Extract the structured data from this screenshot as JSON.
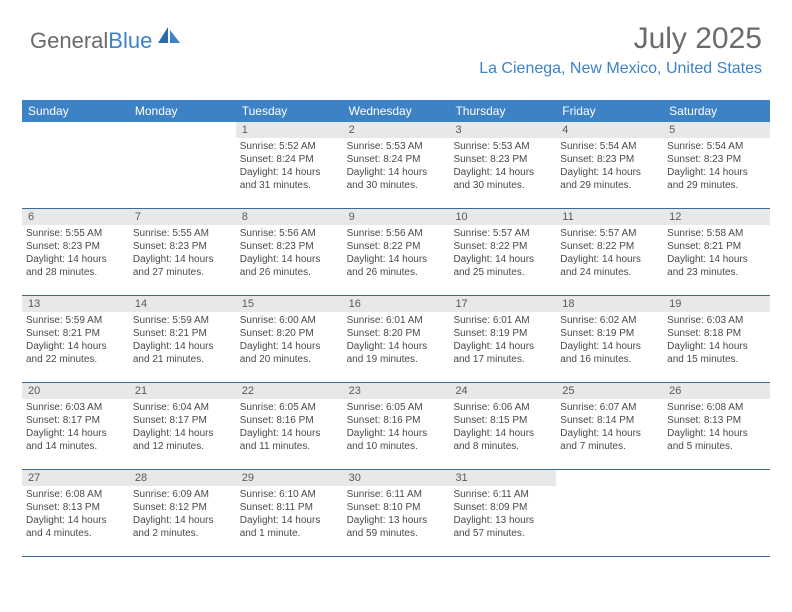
{
  "logo": {
    "text1": "General",
    "text2": "Blue"
  },
  "header": {
    "month_title": "July 2025",
    "location": "La Cienega, New Mexico, United States"
  },
  "colors": {
    "header_bg": "#3d82c4",
    "header_text": "#ffffff",
    "daynum_bg": "#e8e8e8",
    "border": "#3d6a96",
    "title_color": "#6b6b6b",
    "location_color": "#3d82c4",
    "body_text": "#4a4a4a"
  },
  "day_names": [
    "Sunday",
    "Monday",
    "Tuesday",
    "Wednesday",
    "Thursday",
    "Friday",
    "Saturday"
  ],
  "weeks": [
    [
      null,
      null,
      {
        "n": "1",
        "sr": "5:52 AM",
        "ss": "8:24 PM",
        "dl": "14 hours and 31 minutes."
      },
      {
        "n": "2",
        "sr": "5:53 AM",
        "ss": "8:24 PM",
        "dl": "14 hours and 30 minutes."
      },
      {
        "n": "3",
        "sr": "5:53 AM",
        "ss": "8:23 PM",
        "dl": "14 hours and 30 minutes."
      },
      {
        "n": "4",
        "sr": "5:54 AM",
        "ss": "8:23 PM",
        "dl": "14 hours and 29 minutes."
      },
      {
        "n": "5",
        "sr": "5:54 AM",
        "ss": "8:23 PM",
        "dl": "14 hours and 29 minutes."
      }
    ],
    [
      {
        "n": "6",
        "sr": "5:55 AM",
        "ss": "8:23 PM",
        "dl": "14 hours and 28 minutes."
      },
      {
        "n": "7",
        "sr": "5:55 AM",
        "ss": "8:23 PM",
        "dl": "14 hours and 27 minutes."
      },
      {
        "n": "8",
        "sr": "5:56 AM",
        "ss": "8:23 PM",
        "dl": "14 hours and 26 minutes."
      },
      {
        "n": "9",
        "sr": "5:56 AM",
        "ss": "8:22 PM",
        "dl": "14 hours and 26 minutes."
      },
      {
        "n": "10",
        "sr": "5:57 AM",
        "ss": "8:22 PM",
        "dl": "14 hours and 25 minutes."
      },
      {
        "n": "11",
        "sr": "5:57 AM",
        "ss": "8:22 PM",
        "dl": "14 hours and 24 minutes."
      },
      {
        "n": "12",
        "sr": "5:58 AM",
        "ss": "8:21 PM",
        "dl": "14 hours and 23 minutes."
      }
    ],
    [
      {
        "n": "13",
        "sr": "5:59 AM",
        "ss": "8:21 PM",
        "dl": "14 hours and 22 minutes."
      },
      {
        "n": "14",
        "sr": "5:59 AM",
        "ss": "8:21 PM",
        "dl": "14 hours and 21 minutes."
      },
      {
        "n": "15",
        "sr": "6:00 AM",
        "ss": "8:20 PM",
        "dl": "14 hours and 20 minutes."
      },
      {
        "n": "16",
        "sr": "6:01 AM",
        "ss": "8:20 PM",
        "dl": "14 hours and 19 minutes."
      },
      {
        "n": "17",
        "sr": "6:01 AM",
        "ss": "8:19 PM",
        "dl": "14 hours and 17 minutes."
      },
      {
        "n": "18",
        "sr": "6:02 AM",
        "ss": "8:19 PM",
        "dl": "14 hours and 16 minutes."
      },
      {
        "n": "19",
        "sr": "6:03 AM",
        "ss": "8:18 PM",
        "dl": "14 hours and 15 minutes."
      }
    ],
    [
      {
        "n": "20",
        "sr": "6:03 AM",
        "ss": "8:17 PM",
        "dl": "14 hours and 14 minutes."
      },
      {
        "n": "21",
        "sr": "6:04 AM",
        "ss": "8:17 PM",
        "dl": "14 hours and 12 minutes."
      },
      {
        "n": "22",
        "sr": "6:05 AM",
        "ss": "8:16 PM",
        "dl": "14 hours and 11 minutes."
      },
      {
        "n": "23",
        "sr": "6:05 AM",
        "ss": "8:16 PM",
        "dl": "14 hours and 10 minutes."
      },
      {
        "n": "24",
        "sr": "6:06 AM",
        "ss": "8:15 PM",
        "dl": "14 hours and 8 minutes."
      },
      {
        "n": "25",
        "sr": "6:07 AM",
        "ss": "8:14 PM",
        "dl": "14 hours and 7 minutes."
      },
      {
        "n": "26",
        "sr": "6:08 AM",
        "ss": "8:13 PM",
        "dl": "14 hours and 5 minutes."
      }
    ],
    [
      {
        "n": "27",
        "sr": "6:08 AM",
        "ss": "8:13 PM",
        "dl": "14 hours and 4 minutes."
      },
      {
        "n": "28",
        "sr": "6:09 AM",
        "ss": "8:12 PM",
        "dl": "14 hours and 2 minutes."
      },
      {
        "n": "29",
        "sr": "6:10 AM",
        "ss": "8:11 PM",
        "dl": "14 hours and 1 minute."
      },
      {
        "n": "30",
        "sr": "6:11 AM",
        "ss": "8:10 PM",
        "dl": "13 hours and 59 minutes."
      },
      {
        "n": "31",
        "sr": "6:11 AM",
        "ss": "8:09 PM",
        "dl": "13 hours and 57 minutes."
      },
      null,
      null
    ]
  ],
  "labels": {
    "sunrise": "Sunrise:",
    "sunset": "Sunset:",
    "daylight": "Daylight:"
  }
}
